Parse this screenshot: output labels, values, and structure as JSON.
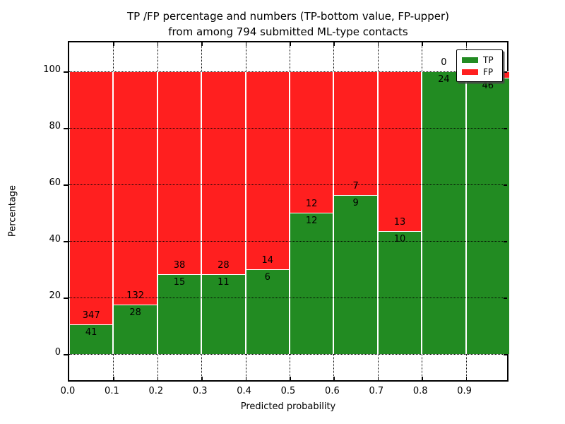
{
  "figure": {
    "title_line1": "TP /FP percentage and numbers (TP-bottom value, FP-upper)",
    "title_line2": "from among 794 submitted ML-type contacts",
    "xlabel": "Predicted probability",
    "ylabel": "Percentage"
  },
  "chart_data": {
    "type": "bar",
    "subtype": "stacked-percentage",
    "title": "TP /FP percentage and numbers (TP-bottom value, FP-upper) from among 794 submitted ML-type contacts",
    "xlabel": "Predicted probability",
    "ylabel": "Percentage",
    "total_contacts": 794,
    "xlim": [
      0.0,
      1.0
    ],
    "ylim": [
      -9.7,
      110.7
    ],
    "grid": "dotted",
    "xticks": [
      "0.0",
      "0.1",
      "0.2",
      "0.3",
      "0.4",
      "0.5",
      "0.6",
      "0.7",
      "0.8",
      "0.9"
    ],
    "yticks": [
      0,
      20,
      40,
      60,
      80,
      100
    ],
    "colors": {
      "tp": "#228b22",
      "fp": "#ff1f1f",
      "bar_edge": "#ffffff"
    },
    "legend": {
      "position": "upper right",
      "entries": [
        {
          "label": "TP",
          "color": "#228b22"
        },
        {
          "label": "FP",
          "color": "#ff1f1f"
        }
      ]
    },
    "x_bins": [
      {
        "range": [
          0.0,
          0.1
        ],
        "tp": 41,
        "fp": 347,
        "fp_label_visible": true
      },
      {
        "range": [
          0.1,
          0.2
        ],
        "tp": 28,
        "fp": 132,
        "fp_label_visible": true
      },
      {
        "range": [
          0.2,
          0.3
        ],
        "tp": 15,
        "fp": 38,
        "fp_label_visible": true
      },
      {
        "range": [
          0.3,
          0.4
        ],
        "tp": 11,
        "fp": 28,
        "fp_label_visible": true
      },
      {
        "range": [
          0.4,
          0.5
        ],
        "tp": 6,
        "fp": 14,
        "fp_label_visible": true
      },
      {
        "range": [
          0.5,
          0.6
        ],
        "tp": 12,
        "fp": 12,
        "fp_label_visible": true
      },
      {
        "range": [
          0.6,
          0.7
        ],
        "tp": 9,
        "fp": 7,
        "fp_label_visible": true
      },
      {
        "range": [
          0.7,
          0.8
        ],
        "tp": 10,
        "fp": 13,
        "fp_label_visible": true
      },
      {
        "range": [
          0.8,
          0.9
        ],
        "tp": 24,
        "fp": 0,
        "fp_label_visible": true
      },
      {
        "range": [
          0.9,
          1.0
        ],
        "tp": 46,
        "fp": 1,
        "fp_label_visible": false
      }
    ]
  }
}
